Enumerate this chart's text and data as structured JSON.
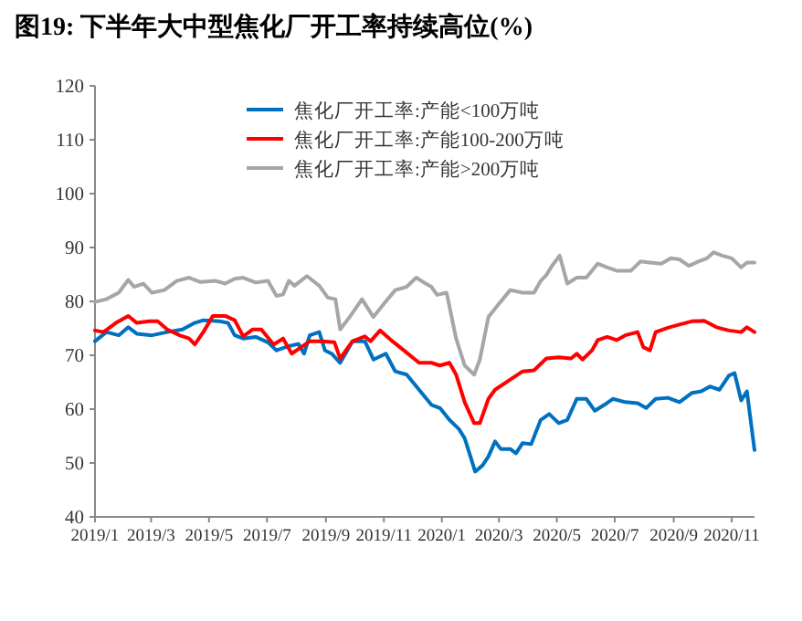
{
  "chart_data": {
    "type": "line",
    "title": "图19: 下半年大中型焦化厂开工率持续高位(%)",
    "ylim": [
      40,
      120
    ],
    "yticks": [
      40,
      50,
      60,
      70,
      80,
      90,
      100,
      110,
      120
    ],
    "xlim": [
      "2019-01-01",
      "2020-11-25"
    ],
    "xticks": [
      {
        "value": "2019-01-01",
        "label": "2019/1"
      },
      {
        "value": "2019-03-01",
        "label": "2019/3"
      },
      {
        "value": "2019-05-01",
        "label": "2019/5"
      },
      {
        "value": "2019-07-01",
        "label": "2019/7"
      },
      {
        "value": "2019-09-01",
        "label": "2019/9"
      },
      {
        "value": "2019-11-01",
        "label": "2019/11"
      },
      {
        "value": "2020-01-01",
        "label": "2020/1"
      },
      {
        "value": "2020-03-01",
        "label": "2020/3"
      },
      {
        "value": "2020-05-01",
        "label": "2020/5"
      },
      {
        "value": "2020-07-01",
        "label": "2020/7"
      },
      {
        "value": "2020-09-01",
        "label": "2020/9"
      },
      {
        "value": "2020-11-01",
        "label": "2020/11"
      }
    ],
    "legend": "top",
    "grid": false,
    "line_style": "solid",
    "series": [
      {
        "name": "焦化厂开工率:产能<100万吨",
        "color": "#0070c0",
        "x": [
          "2019-01-01",
          "2019-01-13",
          "2019-01-26",
          "2019-02-05",
          "2019-02-14",
          "2019-03-02",
          "2019-03-18",
          "2019-04-03",
          "2019-04-16",
          "2019-04-25",
          "2019-05-12",
          "2019-05-21",
          "2019-05-28",
          "2019-06-06",
          "2019-06-19",
          "2019-07-02",
          "2019-07-11",
          "2019-07-24",
          "2019-08-03",
          "2019-08-09",
          "2019-08-15",
          "2019-08-25",
          "2019-08-31",
          "2019-09-07",
          "2019-09-16",
          "2019-09-29",
          "2019-10-12",
          "2019-10-21",
          "2019-11-03",
          "2019-11-13",
          "2019-11-25",
          "2019-12-08",
          "2019-12-21",
          "2019-12-30",
          "2020-01-09",
          "2020-01-19",
          "2020-01-25",
          "2020-02-01",
          "2020-02-05",
          "2020-02-13",
          "2020-02-19",
          "2020-02-26",
          "2020-03-03",
          "2020-03-13",
          "2020-03-19",
          "2020-03-26",
          "2020-04-04",
          "2020-04-14",
          "2020-04-23",
          "2020-05-03",
          "2020-05-12",
          "2020-05-22",
          "2020-06-01",
          "2020-06-10",
          "2020-06-20",
          "2020-06-29",
          "2020-07-12",
          "2020-07-25",
          "2020-08-03",
          "2020-08-13",
          "2020-08-26",
          "2020-09-07",
          "2020-09-20",
          "2020-09-30",
          "2020-10-09",
          "2020-10-19",
          "2020-10-29",
          "2020-11-04",
          "2020-11-11",
          "2020-11-17",
          "2020-11-25"
        ],
        "values": [
          72.6,
          74.3,
          73.7,
          75.2,
          74,
          73.7,
          74.3,
          74.8,
          76,
          76.5,
          76.3,
          76,
          73.7,
          73.1,
          73.4,
          72.4,
          70.9,
          71.7,
          72.1,
          70.3,
          73.7,
          74.3,
          70.9,
          70.3,
          68.6,
          72.6,
          72.6,
          69.2,
          70.3,
          67,
          66.4,
          63.6,
          60.8,
          60.2,
          58,
          56.3,
          54.6,
          50.7,
          48.4,
          49.6,
          51.2,
          54,
          52.6,
          52.6,
          51.8,
          53.7,
          53.5,
          58,
          59.1,
          57.4,
          58,
          61.9,
          61.9,
          59.7,
          60.8,
          61.9,
          61.3,
          61.1,
          60.2,
          61.9,
          62.1,
          61.3,
          63,
          63.3,
          64.2,
          63.6,
          66.2,
          66.7,
          61.6,
          63.3,
          52.4
        ]
      },
      {
        "name": "焦化厂开工率:产能100-200万吨",
        "color": "#ff0000",
        "x": [
          "2019-01-01",
          "2019-01-10",
          "2019-01-23",
          "2019-02-05",
          "2019-02-14",
          "2019-02-27",
          "2019-03-08",
          "2019-03-18",
          "2019-03-31",
          "2019-04-10",
          "2019-04-16",
          "2019-04-25",
          "2019-05-05",
          "2019-05-18",
          "2019-05-28",
          "2019-06-06",
          "2019-06-16",
          "2019-06-25",
          "2019-07-08",
          "2019-07-18",
          "2019-07-27",
          "2019-08-06",
          "2019-08-15",
          "2019-08-28",
          "2019-09-10",
          "2019-09-16",
          "2019-09-29",
          "2019-10-12",
          "2019-10-18",
          "2019-10-28",
          "2019-11-10",
          "2019-11-22",
          "2019-12-08",
          "2019-12-21",
          "2019-12-30",
          "2020-01-09",
          "2020-01-16",
          "2020-01-25",
          "2020-02-04",
          "2020-02-10",
          "2020-02-19",
          "2020-02-26",
          "2020-03-13",
          "2020-03-26",
          "2020-04-07",
          "2020-04-20",
          "2020-05-03",
          "2020-05-16",
          "2020-05-22",
          "2020-05-28",
          "2020-06-07",
          "2020-06-13",
          "2020-06-23",
          "2020-07-03",
          "2020-07-12",
          "2020-07-25",
          "2020-07-31",
          "2020-08-07",
          "2020-08-13",
          "2020-08-26",
          "2020-09-07",
          "2020-09-20",
          "2020-10-03",
          "2020-10-16",
          "2020-10-29",
          "2020-11-11",
          "2020-11-17",
          "2020-11-25"
        ],
        "values": [
          74.6,
          74.3,
          76,
          77.3,
          76,
          76.3,
          76.3,
          74.8,
          73.7,
          73.1,
          72,
          74.3,
          77.3,
          77.3,
          76.5,
          73.5,
          74.8,
          74.8,
          72,
          73.1,
          70.3,
          71.5,
          72.6,
          72.6,
          72.4,
          69.4,
          72.6,
          73.5,
          72.6,
          74.6,
          72.6,
          70.9,
          68.6,
          68.6,
          68.1,
          68.6,
          66.4,
          61.3,
          57.4,
          57.4,
          61.9,
          63.6,
          65.5,
          67,
          67.2,
          69.4,
          69.6,
          69.4,
          70.3,
          69.2,
          70.9,
          72.8,
          73.4,
          72.8,
          73.7,
          74.3,
          71.5,
          70.9,
          74.3,
          75.1,
          75.7,
          76.3,
          76.4,
          75.2,
          74.6,
          74.3,
          75.2,
          74.3
        ]
      },
      {
        "name": "焦化厂开工率:产能>200万吨",
        "color": "#a6a6a6",
        "x": [
          "2019-01-01",
          "2019-01-13",
          "2019-01-26",
          "2019-02-05",
          "2019-02-11",
          "2019-02-21",
          "2019-03-02",
          "2019-03-15",
          "2019-03-28",
          "2019-04-10",
          "2019-04-22",
          "2019-05-08",
          "2019-05-18",
          "2019-05-28",
          "2019-06-06",
          "2019-06-19",
          "2019-07-02",
          "2019-07-11",
          "2019-07-18",
          "2019-07-24",
          "2019-07-30",
          "2019-08-12",
          "2019-08-25",
          "2019-09-03",
          "2019-09-11",
          "2019-09-16",
          "2019-09-26",
          "2019-10-09",
          "2019-10-21",
          "2019-10-31",
          "2019-11-13",
          "2019-11-25",
          "2019-12-05",
          "2019-12-15",
          "2019-12-21",
          "2019-12-27",
          "2020-01-06",
          "2020-01-16",
          "2020-01-25",
          "2020-02-04",
          "2020-02-10",
          "2020-02-19",
          "2020-02-29",
          "2020-03-13",
          "2020-03-26",
          "2020-04-07",
          "2020-04-14",
          "2020-04-20",
          "2020-04-26",
          "2020-05-04",
          "2020-05-12",
          "2020-05-22",
          "2020-06-01",
          "2020-06-13",
          "2020-06-23",
          "2020-07-03",
          "2020-07-18",
          "2020-07-28",
          "2020-08-07",
          "2020-08-19",
          "2020-08-29",
          "2020-09-07",
          "2020-09-17",
          "2020-09-27",
          "2020-10-06",
          "2020-10-13",
          "2020-10-22",
          "2020-11-01",
          "2020-11-11",
          "2020-11-17",
          "2020-11-25"
        ],
        "values": [
          79.9,
          80.4,
          81.6,
          84,
          82.7,
          83.3,
          81.6,
          82.1,
          83.8,
          84.4,
          83.6,
          83.8,
          83.3,
          84.2,
          84.4,
          83.5,
          83.8,
          81,
          81.3,
          83.8,
          82.9,
          84.7,
          82.9,
          80.7,
          80.4,
          74.8,
          77.1,
          80.4,
          77.1,
          79.3,
          82.1,
          82.7,
          84.4,
          83.3,
          82.7,
          81.2,
          81.6,
          73.1,
          68.1,
          66.4,
          69.2,
          77.1,
          79.3,
          82.1,
          81.6,
          81.6,
          83.8,
          84.9,
          86.6,
          88.5,
          83.3,
          84.4,
          84.4,
          87,
          86.3,
          85.7,
          85.7,
          87.4,
          87.2,
          87,
          88,
          87.8,
          86.6,
          87.4,
          88,
          89.1,
          88.5,
          88,
          86.3,
          87.2,
          87.2
        ]
      }
    ]
  }
}
